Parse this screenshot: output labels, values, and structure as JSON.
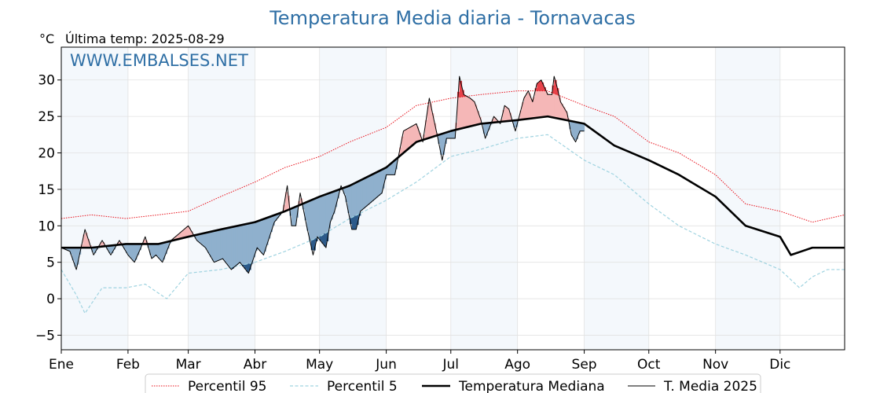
{
  "chart_data": {
    "type": "line",
    "title": "Temperatura Media diaria - Tornavacas",
    "unit_label": "°C",
    "last_temp_label": "Última temp: 2025-08-29",
    "watermark": "WWW.EMBALSES.NET",
    "ylim": [
      -7,
      34.5
    ],
    "yticks": [
      -5,
      0,
      5,
      10,
      15,
      20,
      25,
      30
    ],
    "x_months": [
      "Ene",
      "Feb",
      "Mar",
      "Abr",
      "May",
      "Jun",
      "Jul",
      "Ago",
      "Sep",
      "Oct",
      "Nov",
      "Dic"
    ],
    "x_unit": "day of year",
    "grid": true,
    "legend_position": "bottom",
    "shading": {
      "band_color": "#f4f8fc",
      "above_median_color": "#f5b7b7",
      "above_p95_color": "#e8424a",
      "below_median_color": "#8fb0cd",
      "below_p5_color": "#2c5a8a"
    },
    "series": [
      {
        "name": "Percentil 95",
        "color": "#e8111b",
        "style": "dotted",
        "points": [
          [
            1,
            11
          ],
          [
            15,
            11.5
          ],
          [
            31,
            11
          ],
          [
            46,
            11.5
          ],
          [
            60,
            12
          ],
          [
            75,
            14
          ],
          [
            91,
            16
          ],
          [
            105,
            18
          ],
          [
            121,
            19.5
          ],
          [
            135,
            21.5
          ],
          [
            152,
            23.5
          ],
          [
            166,
            26.5
          ],
          [
            182,
            27.5
          ],
          [
            196,
            28
          ],
          [
            213,
            28.5
          ],
          [
            227,
            28.5
          ],
          [
            244,
            26.5
          ],
          [
            258,
            25
          ],
          [
            274,
            21.5
          ],
          [
            288,
            20
          ],
          [
            305,
            17
          ],
          [
            319,
            13
          ],
          [
            335,
            12
          ],
          [
            350,
            10.5
          ],
          [
            365,
            11.5
          ]
        ]
      },
      {
        "name": "Percentil 5",
        "color": "#9fd3e0",
        "style": "dashed",
        "points": [
          [
            1,
            4
          ],
          [
            8,
            0.5
          ],
          [
            12,
            -2
          ],
          [
            20,
            1.5
          ],
          [
            31,
            1.5
          ],
          [
            40,
            2
          ],
          [
            50,
            0
          ],
          [
            60,
            3.5
          ],
          [
            75,
            4
          ],
          [
            91,
            5
          ],
          [
            105,
            6.5
          ],
          [
            121,
            8.5
          ],
          [
            135,
            11
          ],
          [
            152,
            13.5
          ],
          [
            166,
            16
          ],
          [
            182,
            19.5
          ],
          [
            196,
            20.5
          ],
          [
            213,
            22
          ],
          [
            227,
            22.5
          ],
          [
            244,
            19
          ],
          [
            258,
            17
          ],
          [
            274,
            13
          ],
          [
            288,
            10
          ],
          [
            305,
            7.5
          ],
          [
            319,
            6
          ],
          [
            335,
            4
          ],
          [
            344,
            1.5
          ],
          [
            350,
            3
          ],
          [
            357,
            4
          ],
          [
            365,
            4
          ]
        ]
      },
      {
        "name": "Temperatura Mediana",
        "color": "#000000",
        "style": "solid-thick",
        "points": [
          [
            1,
            7
          ],
          [
            15,
            7
          ],
          [
            31,
            7.5
          ],
          [
            46,
            7.5
          ],
          [
            60,
            8.5
          ],
          [
            75,
            9.5
          ],
          [
            91,
            10.5
          ],
          [
            105,
            12
          ],
          [
            121,
            14
          ],
          [
            135,
            15.5
          ],
          [
            152,
            18
          ],
          [
            166,
            21.5
          ],
          [
            182,
            23
          ],
          [
            196,
            24
          ],
          [
            213,
            24.5
          ],
          [
            227,
            25
          ],
          [
            244,
            24
          ],
          [
            258,
            21
          ],
          [
            274,
            19
          ],
          [
            288,
            17
          ],
          [
            305,
            14
          ],
          [
            319,
            10
          ],
          [
            335,
            8.5
          ],
          [
            340,
            6
          ],
          [
            350,
            7
          ],
          [
            365,
            7
          ]
        ]
      },
      {
        "name": "T. Media 2025",
        "color": "#000000",
        "style": "solid-thin",
        "points": [
          [
            1,
            7
          ],
          [
            5,
            6.5
          ],
          [
            8,
            4
          ],
          [
            12,
            9.5
          ],
          [
            16,
            6
          ],
          [
            20,
            8
          ],
          [
            24,
            6
          ],
          [
            28,
            8
          ],
          [
            32,
            6
          ],
          [
            35,
            5
          ],
          [
            38,
            7
          ],
          [
            40,
            8.5
          ],
          [
            43,
            5.5
          ],
          [
            45,
            6
          ],
          [
            48,
            5
          ],
          [
            52,
            8
          ],
          [
            56,
            9
          ],
          [
            60,
            10
          ],
          [
            64,
            8
          ],
          [
            68,
            7
          ],
          [
            72,
            5
          ],
          [
            76,
            5.5
          ],
          [
            80,
            4
          ],
          [
            84,
            5
          ],
          [
            88,
            3.5
          ],
          [
            92,
            7
          ],
          [
            95,
            6
          ],
          [
            100,
            10.5
          ],
          [
            104,
            12
          ],
          [
            106,
            15.5
          ],
          [
            108,
            10
          ],
          [
            110,
            10
          ],
          [
            112,
            14.5
          ],
          [
            115,
            10
          ],
          [
            118,
            6
          ],
          [
            120,
            8.5
          ],
          [
            124,
            7
          ],
          [
            126,
            10.5
          ],
          [
            128,
            12
          ],
          [
            131,
            15.5
          ],
          [
            133,
            14
          ],
          [
            136,
            9.5
          ],
          [
            138,
            9.5
          ],
          [
            140,
            12
          ],
          [
            144,
            13
          ],
          [
            148,
            14
          ],
          [
            150,
            14.5
          ],
          [
            152,
            17
          ],
          [
            156,
            17
          ],
          [
            160,
            23
          ],
          [
            163,
            23.5
          ],
          [
            166,
            24
          ],
          [
            169,
            21.5
          ],
          [
            172,
            27.5
          ],
          [
            176,
            22
          ],
          [
            178,
            19
          ],
          [
            180,
            22
          ],
          [
            184,
            22
          ],
          [
            186,
            30.5
          ],
          [
            188,
            28
          ],
          [
            191,
            27.5
          ],
          [
            193,
            27
          ],
          [
            196,
            24.5
          ],
          [
            198,
            22
          ],
          [
            200,
            23.5
          ],
          [
            202,
            25
          ],
          [
            205,
            24
          ],
          [
            207,
            26.5
          ],
          [
            209,
            26
          ],
          [
            212,
            23
          ],
          [
            216,
            27.5
          ],
          [
            218,
            28.5
          ],
          [
            220,
            27
          ],
          [
            222,
            29.5
          ],
          [
            224,
            30
          ],
          [
            227,
            28
          ],
          [
            229,
            28
          ],
          [
            230,
            30.5
          ],
          [
            231,
            29.5
          ],
          [
            233,
            27
          ],
          [
            236,
            25.5
          ],
          [
            238,
            22.5
          ],
          [
            240,
            21.5
          ],
          [
            242,
            23
          ],
          [
            244,
            23
          ]
        ]
      }
    ]
  }
}
